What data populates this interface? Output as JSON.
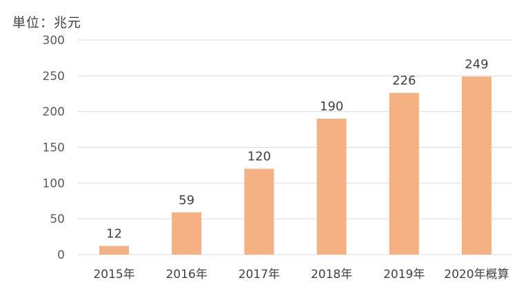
{
  "unit_label": "単位：兆元",
  "colors": {
    "bar": "#F4B183",
    "grid": "#D9D9D9",
    "text": "#404040"
  },
  "chart_data": {
    "type": "bar",
    "categories": [
      "2015年",
      "2016年",
      "2017年",
      "2018年",
      "2019年",
      "2020年概算"
    ],
    "values": [
      12,
      59,
      120,
      190,
      226,
      249
    ],
    "data_labels": [
      "12",
      "59",
      "120",
      "190",
      "226",
      "249"
    ],
    "yticks": [
      0,
      50,
      100,
      150,
      200,
      250,
      300
    ],
    "ylim": [
      0,
      300
    ],
    "grid": true,
    "legend": "none"
  }
}
